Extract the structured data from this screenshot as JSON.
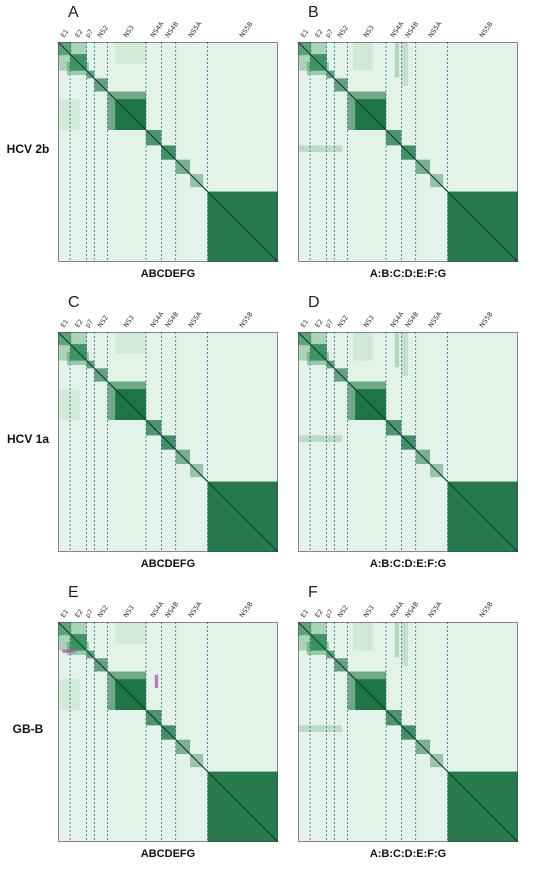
{
  "rows": [
    {
      "label": "HCV 2b",
      "panels": [
        {
          "letter": "A",
          "caption": "ABCDEFG",
          "variant": "single"
        },
        {
          "letter": "B",
          "caption": "A:B:C:D:E:F:G",
          "variant": "split"
        }
      ]
    },
    {
      "label": "HCV 1a",
      "panels": [
        {
          "letter": "C",
          "caption": "ABCDEFG",
          "variant": "single"
        },
        {
          "letter": "D",
          "caption": "A:B:C:D:E:F:G",
          "variant": "split"
        }
      ]
    },
    {
      "label": "GB-B",
      "panels": [
        {
          "letter": "E",
          "caption": "ABCDEFG",
          "variant": "single-gbb"
        },
        {
          "letter": "F",
          "caption": "A:B:C:D:E:F:G",
          "variant": "split"
        }
      ]
    }
  ],
  "regions": [
    {
      "name": "E1"
    },
    {
      "name": "E2"
    },
    {
      "name": "p7"
    },
    {
      "name": "NS2"
    },
    {
      "name": "NS3"
    },
    {
      "name": "NS4A"
    },
    {
      "name": "NS4B"
    },
    {
      "name": "NS5A"
    },
    {
      "name": "NS5B"
    }
  ],
  "colors": {
    "background": "#eef8f1",
    "dark": "#0f6b3a",
    "mid": "#3c9a5f",
    "light": "#a8d8b4",
    "divider": "#2a6f8f",
    "diagonal": "#0a4d28",
    "highlight": "#b05ab8"
  }
}
